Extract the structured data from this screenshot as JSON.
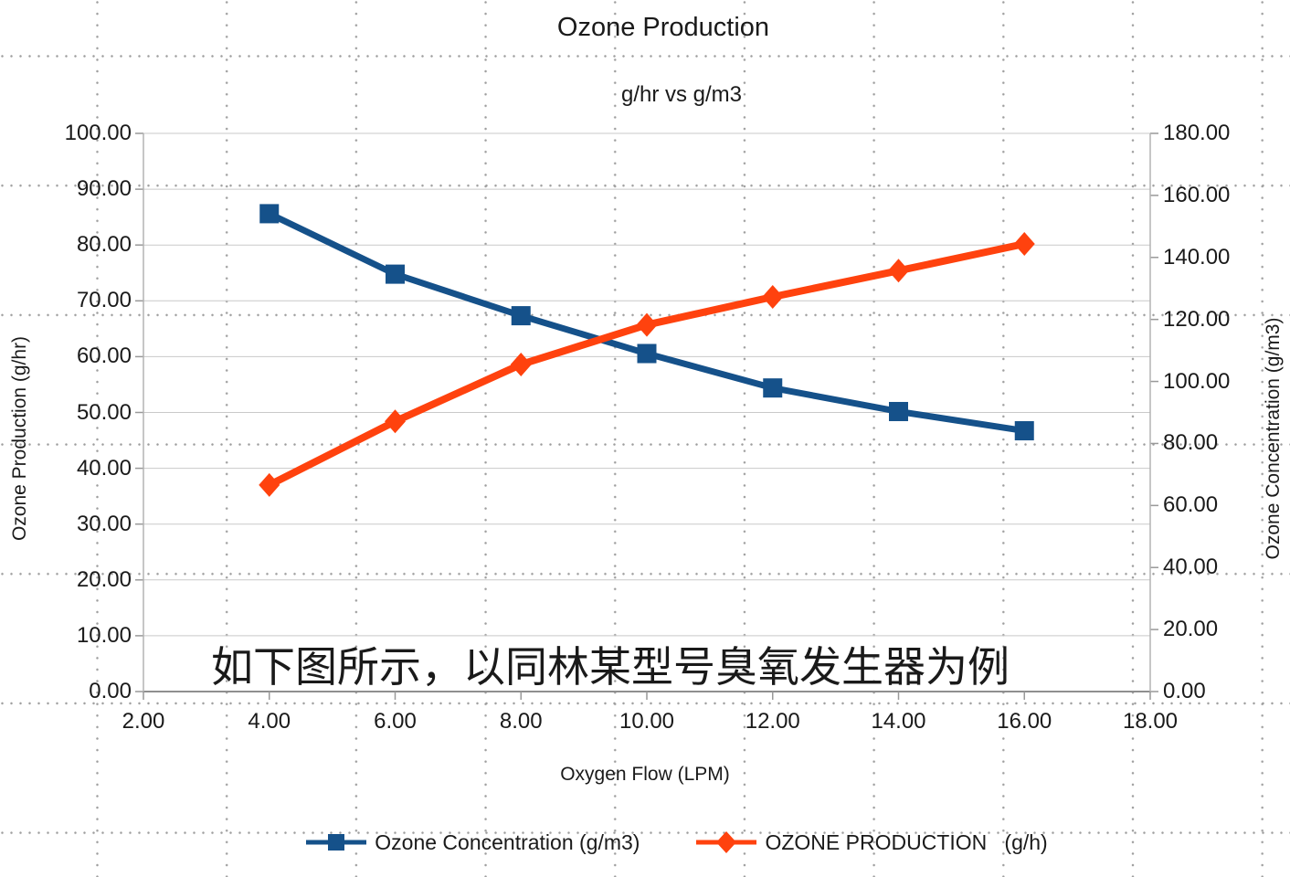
{
  "title": "Ozone Production",
  "subtitle": "g/hr vs g/m3",
  "annotation": "如下图所示，以同林某型号臭氧发生器为例",
  "axes": {
    "left": {
      "title": "Ozone Production (g/hr)",
      "ticks": [
        "100.00",
        "90.00",
        "80.00",
        "70.00",
        "60.00",
        "50.00",
        "40.00",
        "30.00",
        "20.00",
        "10.00",
        "0.00"
      ]
    },
    "right": {
      "title": "Ozone Concentration (g/m3)",
      "ticks": [
        "180.00",
        "160.00",
        "140.00",
        "120.00",
        "100.00",
        "80.00",
        "60.00",
        "40.00",
        "20.00",
        "0.00"
      ]
    },
    "x": {
      "title": "Oxygen Flow (LPM)",
      "ticks": [
        "2.00",
        "4.00",
        "6.00",
        "8.00",
        "10.00",
        "12.00",
        "14.00",
        "16.00",
        "18.00"
      ]
    }
  },
  "legend": [
    {
      "label": "Ozone Concentration (g/m3)",
      "color": "#15518a",
      "marker": "square"
    },
    {
      "label": "OZONE PRODUCTION   (g/h)",
      "color": "#ff420e",
      "marker": "diamond"
    }
  ],
  "colors": {
    "series_blue": "#15518a",
    "series_orange": "#ff420e",
    "gridline": "#c9c9c9",
    "axis_line": "#8f8f8f"
  },
  "chart_data": {
    "type": "line",
    "title": "Ozone Production",
    "subtitle": "g/hr vs g/m3",
    "xlabel": "Oxygen Flow (LPM)",
    "ylabel_left": "Ozone Production (g/hr)",
    "ylabel_right": "Ozone Concentration (g/m3)",
    "xlim": [
      2,
      18
    ],
    "ylim_left": [
      0,
      100
    ],
    "ylim_right": [
      0,
      180
    ],
    "grid": true,
    "legend_position": "bottom",
    "x": [
      4,
      6,
      8,
      10,
      12,
      14,
      16
    ],
    "series": [
      {
        "name": "Ozone Concentration (g/m3)",
        "axis": "right",
        "color": "#15518a",
        "marker": "square",
        "values": [
          154.1,
          134.6,
          121.2,
          109.0,
          97.9,
          90.3,
          84.1
        ]
      },
      {
        "name": "OZONE PRODUCTION (g/h)",
        "axis": "left",
        "color": "#ff420e",
        "marker": "diamond",
        "values": [
          37.0,
          48.4,
          58.6,
          65.7,
          70.7,
          75.4,
          80.2
        ]
      }
    ]
  }
}
